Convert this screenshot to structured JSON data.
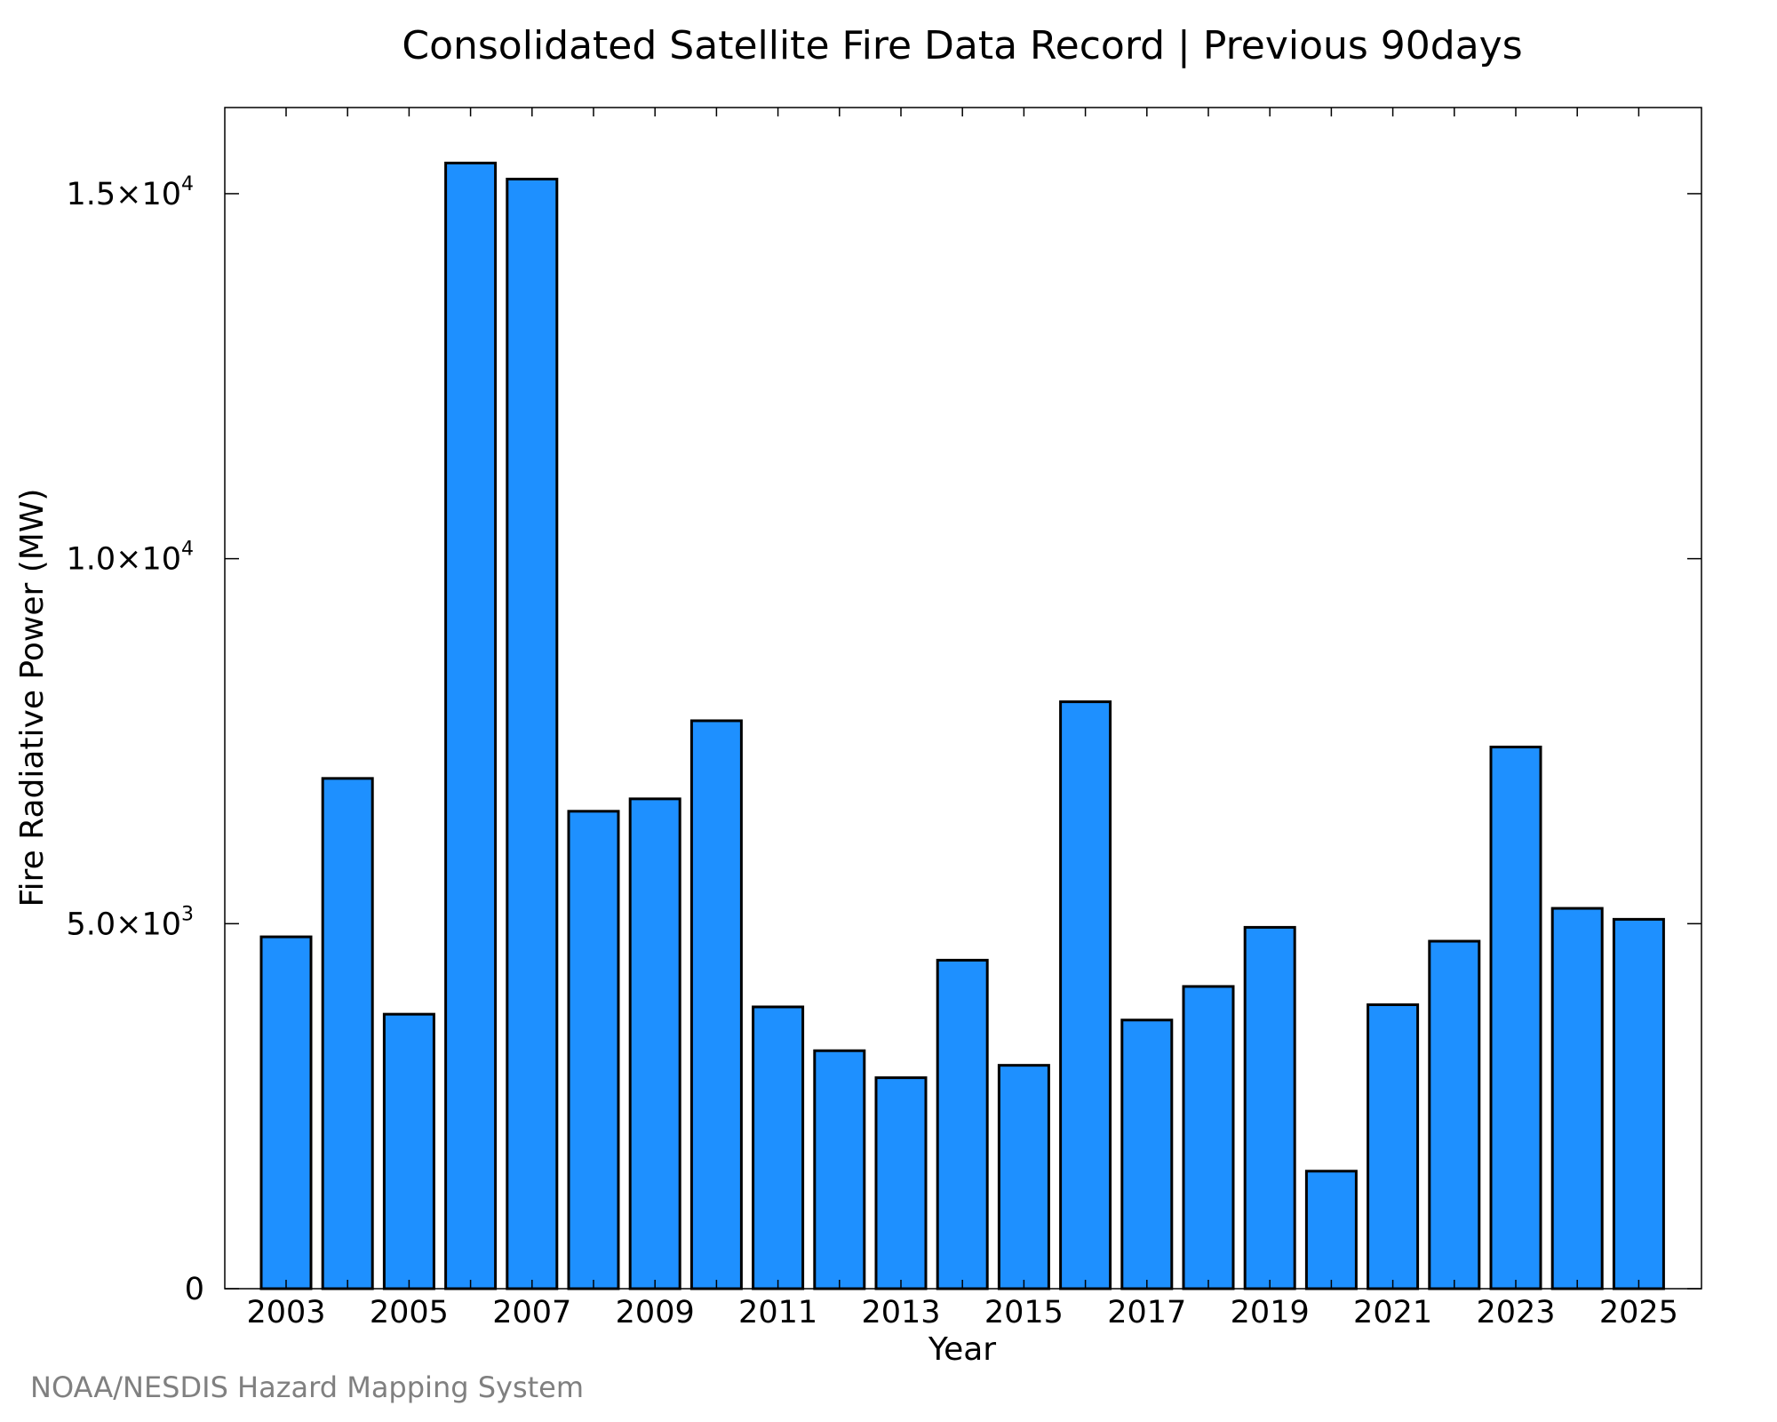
{
  "credit": "NOAA/NESDIS Hazard Mapping System",
  "chart_data": {
    "type": "bar",
    "title": "Consolidated Satellite Fire Data Record | Previous 90days",
    "xlabel": "Year",
    "ylabel": "Fire Radiative Power (MW)",
    "categories": [
      "2003",
      "2004",
      "2005",
      "2006",
      "2007",
      "2008",
      "2009",
      "2010",
      "2011",
      "2012",
      "2013",
      "2014",
      "2015",
      "2016",
      "2017",
      "2018",
      "2019",
      "2020",
      "2021",
      "2022",
      "2023",
      "2024",
      "2025"
    ],
    "values": [
      4820,
      6990,
      3760,
      15420,
      15200,
      6540,
      6710,
      7780,
      3860,
      3260,
      2890,
      4500,
      3060,
      8040,
      3680,
      4140,
      4950,
      1610,
      3890,
      4760,
      7420,
      5210,
      5060
    ],
    "x_tick_labels": [
      "2003",
      "2005",
      "2007",
      "2009",
      "2011",
      "2013",
      "2015",
      "2017",
      "2019",
      "2021",
      "2023",
      "2025"
    ],
    "y_ticks": [
      {
        "value": 0,
        "mantissa": "0",
        "exponent": ""
      },
      {
        "value": 5000,
        "mantissa": "5.0×10",
        "exponent": "3"
      },
      {
        "value": 10000,
        "mantissa": "1.0×10",
        "exponent": "4"
      },
      {
        "value": 15000,
        "mantissa": "1.5×10",
        "exponent": "4"
      }
    ],
    "ylim": [
      0,
      16180
    ],
    "bar_color": "#1e90ff",
    "grid": false,
    "legend": "none"
  }
}
